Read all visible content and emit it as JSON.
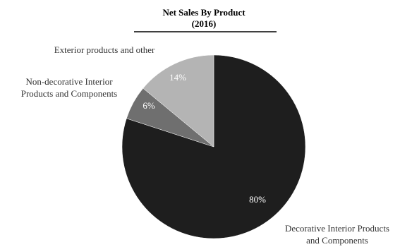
{
  "chart_data": {
    "type": "pie",
    "title": "Net Sales By Product",
    "subtitle": "(2016)",
    "slices": [
      {
        "label": "Decorative Interior Products and Components",
        "label_lines": [
          "Decorative Interior Products",
          "and Components"
        ],
        "value": 80,
        "value_label": "80%",
        "color": "#1e1e1e"
      },
      {
        "label": "Non-decorative Interior Products and Components",
        "label_lines": [
          "Non-decorative Interior",
          "Products and Components"
        ],
        "value": 6,
        "value_label": "6%",
        "color": "#6f6f6f"
      },
      {
        "label": "Exterior products and other",
        "label_lines": [
          "Exterior products and other"
        ],
        "value": 14,
        "value_label": "14%",
        "color": "#b4b4b4"
      }
    ]
  }
}
